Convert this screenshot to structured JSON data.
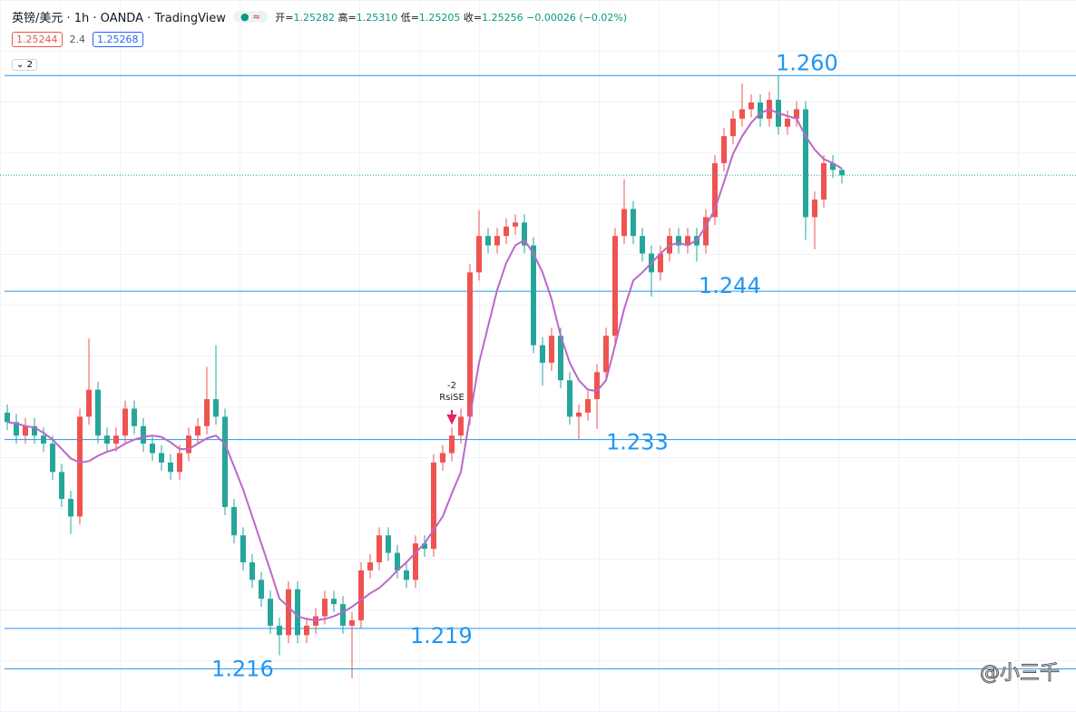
{
  "header": {
    "symbol": "英镑/美元 · 1h · OANDA · TradingView",
    "ohlc": [
      [
        "开=",
        "1.25282"
      ],
      [
        "高=",
        "1.25310"
      ],
      [
        "低=",
        "1.25205"
      ],
      [
        "收=",
        "1.25256"
      ]
    ],
    "change": "−0.00026 (−0.02%)",
    "badge": "≈",
    "indicator": [
      "1.25244",
      "2.4",
      "1.25268"
    ],
    "collapse": "2"
  },
  "chart_data": {
    "type": "candlestick",
    "up_color": "#ef5350",
    "down_color": "#26a69a",
    "ylim": [
      1.2128,
      1.2656
    ],
    "open": [
      1.235,
      1.2343,
      1.2333,
      1.234,
      1.2333,
      1.2327,
      1.2306,
      1.2286,
      1.2273,
      1.2347,
      1.2367,
      1.2333,
      1.2327,
      1.2333,
      1.2353,
      1.234,
      1.2327,
      1.232,
      1.2313,
      1.2306,
      1.232,
      1.2333,
      1.234,
      1.236,
      1.2347,
      1.228,
      1.2259,
      1.2239,
      1.2226,
      1.2212,
      1.2192,
      1.2185,
      1.2219,
      1.2185,
      1.2192,
      1.2199,
      1.2212,
      1.2208,
      1.2192,
      1.2196,
      1.2233,
      1.2239,
      1.2259,
      1.2246,
      1.2233,
      1.2226,
      1.2253,
      1.2249,
      1.2313,
      1.232,
      1.2333,
      1.2347,
      1.2454,
      1.2481,
      1.2474,
      1.2481,
      1.2488,
      1.2491,
      1.2474,
      1.24,
      1.2387,
      1.2407,
      1.2374,
      1.2347,
      1.235,
      1.236,
      1.238,
      1.2407,
      1.2481,
      1.2501,
      1.2481,
      1.2468,
      1.2454,
      1.2468,
      1.2481,
      1.2474,
      1.2481,
      1.2474,
      1.2495,
      1.2535,
      1.2555,
      1.2568,
      1.2575,
      1.258,
      1.2568,
      1.2582,
      1.2562,
      1.2568,
      1.2575,
      1.2495,
      1.2508,
      1.2535,
      1.253
    ],
    "high": [
      1.2356,
      1.2349,
      1.2346,
      1.2346,
      1.2339,
      1.2333,
      1.2312,
      1.2292,
      1.2353,
      1.2405,
      1.2373,
      1.2339,
      1.2339,
      1.2359,
      1.2359,
      1.2346,
      1.2333,
      1.2326,
      1.2319,
      1.2326,
      1.2339,
      1.2346,
      1.2384,
      1.24,
      1.2353,
      1.2286,
      1.2265,
      1.2245,
      1.2232,
      1.2218,
      1.2198,
      1.2225,
      1.2225,
      1.2198,
      1.2205,
      1.2218,
      1.2218,
      1.2214,
      1.2202,
      1.2239,
      1.2245,
      1.2265,
      1.2265,
      1.2252,
      1.2239,
      1.2259,
      1.2259,
      1.2319,
      1.2326,
      1.2339,
      1.2353,
      1.246,
      1.25,
      1.2487,
      1.2487,
      1.2494,
      1.2497,
      1.2497,
      1.248,
      1.2406,
      1.2413,
      1.2413,
      1.238,
      1.2356,
      1.2366,
      1.2386,
      1.2413,
      1.2487,
      1.2523,
      1.2507,
      1.2487,
      1.2474,
      1.2474,
      1.2487,
      1.2487,
      1.2487,
      1.2487,
      1.2501,
      1.2541,
      1.2561,
      1.2574,
      1.2594,
      1.2586,
      1.2586,
      1.2588,
      1.26,
      1.2574,
      1.2581,
      1.2581,
      1.2514,
      1.2541,
      1.2541,
      1.2531
    ],
    "low": [
      1.2337,
      1.2327,
      1.2327,
      1.2327,
      1.2321,
      1.23,
      1.228,
      1.226,
      1.2267,
      1.2341,
      1.2327,
      1.2321,
      1.2321,
      1.2327,
      1.2334,
      1.2321,
      1.2314,
      1.2307,
      1.23,
      1.23,
      1.2314,
      1.2327,
      1.2334,
      1.2341,
      1.2274,
      1.2253,
      1.2233,
      1.222,
      1.2206,
      1.2186,
      1.217,
      1.2179,
      1.2179,
      1.2179,
      1.2186,
      1.2193,
      1.2202,
      1.2186,
      1.2153,
      1.219,
      1.2227,
      1.2233,
      1.224,
      1.2227,
      1.222,
      1.222,
      1.2243,
      1.2243,
      1.2307,
      1.2314,
      1.2327,
      1.2341,
      1.2448,
      1.2468,
      1.2468,
      1.2475,
      1.2482,
      1.2468,
      1.2394,
      1.237,
      1.2381,
      1.2368,
      1.2341,
      1.233,
      1.2344,
      1.2338,
      1.2374,
      1.2401,
      1.2475,
      1.2475,
      1.2462,
      1.2436,
      1.2448,
      1.2462,
      1.2468,
      1.2468,
      1.2462,
      1.2468,
      1.2489,
      1.2529,
      1.2549,
      1.2562,
      1.2569,
      1.2562,
      1.2562,
      1.2556,
      1.2556,
      1.2562,
      1.2478,
      1.2471,
      1.2502,
      1.2524,
      1.252
    ],
    "close": [
      1.2343,
      1.2333,
      1.234,
      1.2333,
      1.2327,
      1.2306,
      1.2286,
      1.2273,
      1.2347,
      1.2367,
      1.2333,
      1.2327,
      1.2333,
      1.2353,
      1.234,
      1.2327,
      1.232,
      1.2313,
      1.2306,
      1.232,
      1.2333,
      1.234,
      1.236,
      1.2347,
      1.228,
      1.2259,
      1.2239,
      1.2226,
      1.2212,
      1.2192,
      1.2185,
      1.2219,
      1.2185,
      1.2192,
      1.2199,
      1.2212,
      1.2208,
      1.2192,
      1.2196,
      1.2233,
      1.2239,
      1.2259,
      1.2246,
      1.2233,
      1.2226,
      1.2253,
      1.2249,
      1.2313,
      1.232,
      1.2333,
      1.2347,
      1.2454,
      1.2481,
      1.2474,
      1.2481,
      1.2488,
      1.2491,
      1.2474,
      1.24,
      1.2387,
      1.2407,
      1.2374,
      1.2347,
      1.235,
      1.236,
      1.238,
      1.2407,
      1.2481,
      1.2501,
      1.2481,
      1.2468,
      1.2454,
      1.2468,
      1.2481,
      1.2474,
      1.2481,
      1.2474,
      1.2495,
      1.2535,
      1.2555,
      1.2568,
      1.2575,
      1.258,
      1.2568,
      1.2582,
      1.2562,
      1.2568,
      1.2575,
      1.2495,
      1.2508,
      1.2535,
      1.253,
      1.2526
    ],
    "ma": {
      "color": "#ba68c8",
      "values": [
        1.2343,
        1.2342,
        1.234,
        1.2339,
        1.2335,
        1.233,
        1.2323,
        1.2316,
        1.2313,
        1.2314,
        1.2318,
        1.2321,
        1.2323,
        1.2327,
        1.233,
        1.2332,
        1.2333,
        1.2332,
        1.2328,
        1.2323,
        1.2323,
        1.2327,
        1.2331,
        1.2333,
        1.2327,
        1.231,
        1.2293,
        1.2273,
        1.2253,
        1.2233,
        1.2212,
        1.2206,
        1.2199,
        1.2197,
        1.2196,
        1.2197,
        1.2199,
        1.2202,
        1.2206,
        1.2211,
        1.2216,
        1.222,
        1.2226,
        1.2233,
        1.2239,
        1.2246,
        1.2253,
        1.2263,
        1.2273,
        1.229,
        1.2306,
        1.2347,
        1.2387,
        1.2414,
        1.2441,
        1.2461,
        1.2474,
        1.2478,
        1.2468,
        1.2454,
        1.2434,
        1.2407,
        1.2387,
        1.2374,
        1.2367,
        1.2366,
        1.2374,
        1.24,
        1.2427,
        1.2448,
        1.2454,
        1.2461,
        1.2468,
        1.2474,
        1.2476,
        1.2474,
        1.2478,
        1.2488,
        1.2501,
        1.2521,
        1.2542,
        1.2555,
        1.2565,
        1.2572,
        1.2575,
        1.2572,
        1.257,
        1.2568,
        1.2555,
        1.2545,
        1.2538,
        1.2535,
        1.2531
      ]
    },
    "levels": [
      {
        "value": 1.26,
        "label": "1.260"
      },
      {
        "value": 1.244,
        "label": "1.244"
      },
      {
        "value": 1.233,
        "label": "1.233"
      },
      {
        "value": 1.219,
        "label": "1.219"
      },
      {
        "value": 1.216,
        "label": "1.216"
      }
    ],
    "level_color": "#2196f3",
    "annotation": [
      "-2",
      "RsiSE"
    ]
  },
  "watermark": "@小三千"
}
